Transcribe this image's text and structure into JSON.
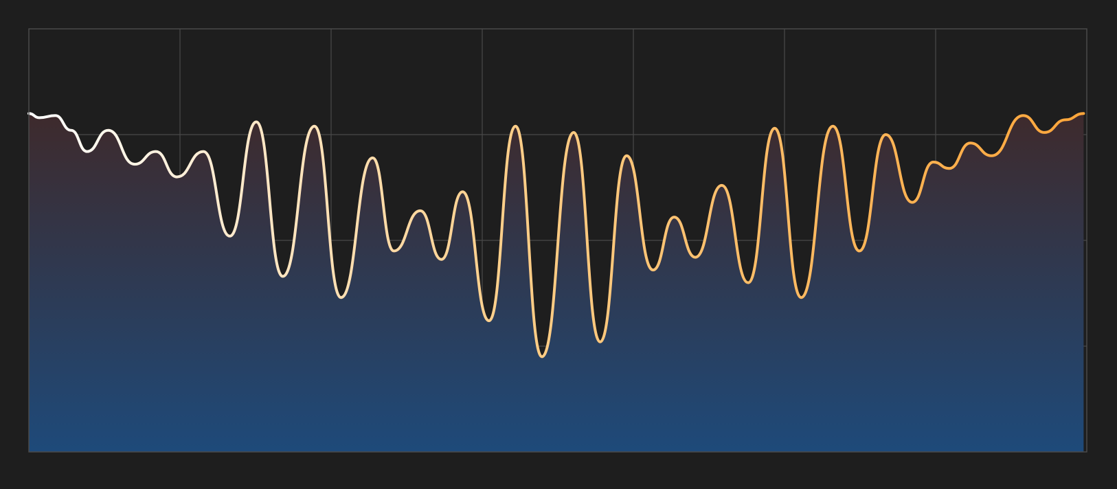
{
  "chart_data": {
    "type": "area",
    "title": "",
    "xlabel": "",
    "ylabel": "",
    "xlim": [
      0,
      100
    ],
    "ylim": [
      0,
      100
    ],
    "grid": true,
    "grid_x_divisions": 7,
    "grid_y_divisions": 4,
    "colors": {
      "background": "#1e1e1e",
      "grid": "#4a4a4a",
      "frame": "#4a4a4a",
      "line_start": "#ffffff",
      "line_mid": "#ffcf8a",
      "line_end": "#ffa63a",
      "fill_top": "#3e2a2c",
      "fill_bottom": "#1e4a7a"
    },
    "series": [
      {
        "points": [
          [
            0.0,
            80.0
          ],
          [
            1.0,
            79.0
          ],
          [
            2.5,
            79.5
          ],
          [
            4.0,
            76.0
          ],
          [
            5.5,
            71.0
          ],
          [
            7.5,
            76.0
          ],
          [
            10.0,
            68.0
          ],
          [
            12.0,
            71.0
          ],
          [
            14.0,
            65.0
          ],
          [
            16.5,
            71.0
          ],
          [
            19.0,
            51.0
          ],
          [
            21.5,
            78.0
          ],
          [
            24.0,
            41.5
          ],
          [
            27.0,
            77.0
          ],
          [
            29.5,
            36.5
          ],
          [
            32.5,
            69.5
          ],
          [
            34.5,
            47.5
          ],
          [
            37.0,
            57.0
          ],
          [
            39.0,
            45.5
          ],
          [
            41.0,
            61.5
          ],
          [
            43.5,
            31.0
          ],
          [
            46.0,
            77.0
          ],
          [
            48.5,
            22.5
          ],
          [
            51.5,
            75.5
          ],
          [
            54.0,
            26.0
          ],
          [
            56.5,
            70.0
          ],
          [
            59.0,
            43.0
          ],
          [
            61.0,
            55.5
          ],
          [
            63.0,
            46.0
          ],
          [
            65.5,
            63.0
          ],
          [
            68.0,
            40.0
          ],
          [
            70.5,
            76.5
          ],
          [
            73.0,
            36.5
          ],
          [
            76.0,
            77.0
          ],
          [
            78.5,
            47.5
          ],
          [
            81.0,
            75.0
          ],
          [
            83.5,
            59.0
          ],
          [
            85.5,
            68.5
          ],
          [
            87.0,
            67.0
          ],
          [
            89.0,
            73.0
          ],
          [
            91.0,
            70.0
          ],
          [
            94.0,
            79.5
          ],
          [
            96.0,
            75.5
          ],
          [
            98.0,
            78.5
          ],
          [
            99.7,
            80.0
          ]
        ]
      }
    ]
  }
}
